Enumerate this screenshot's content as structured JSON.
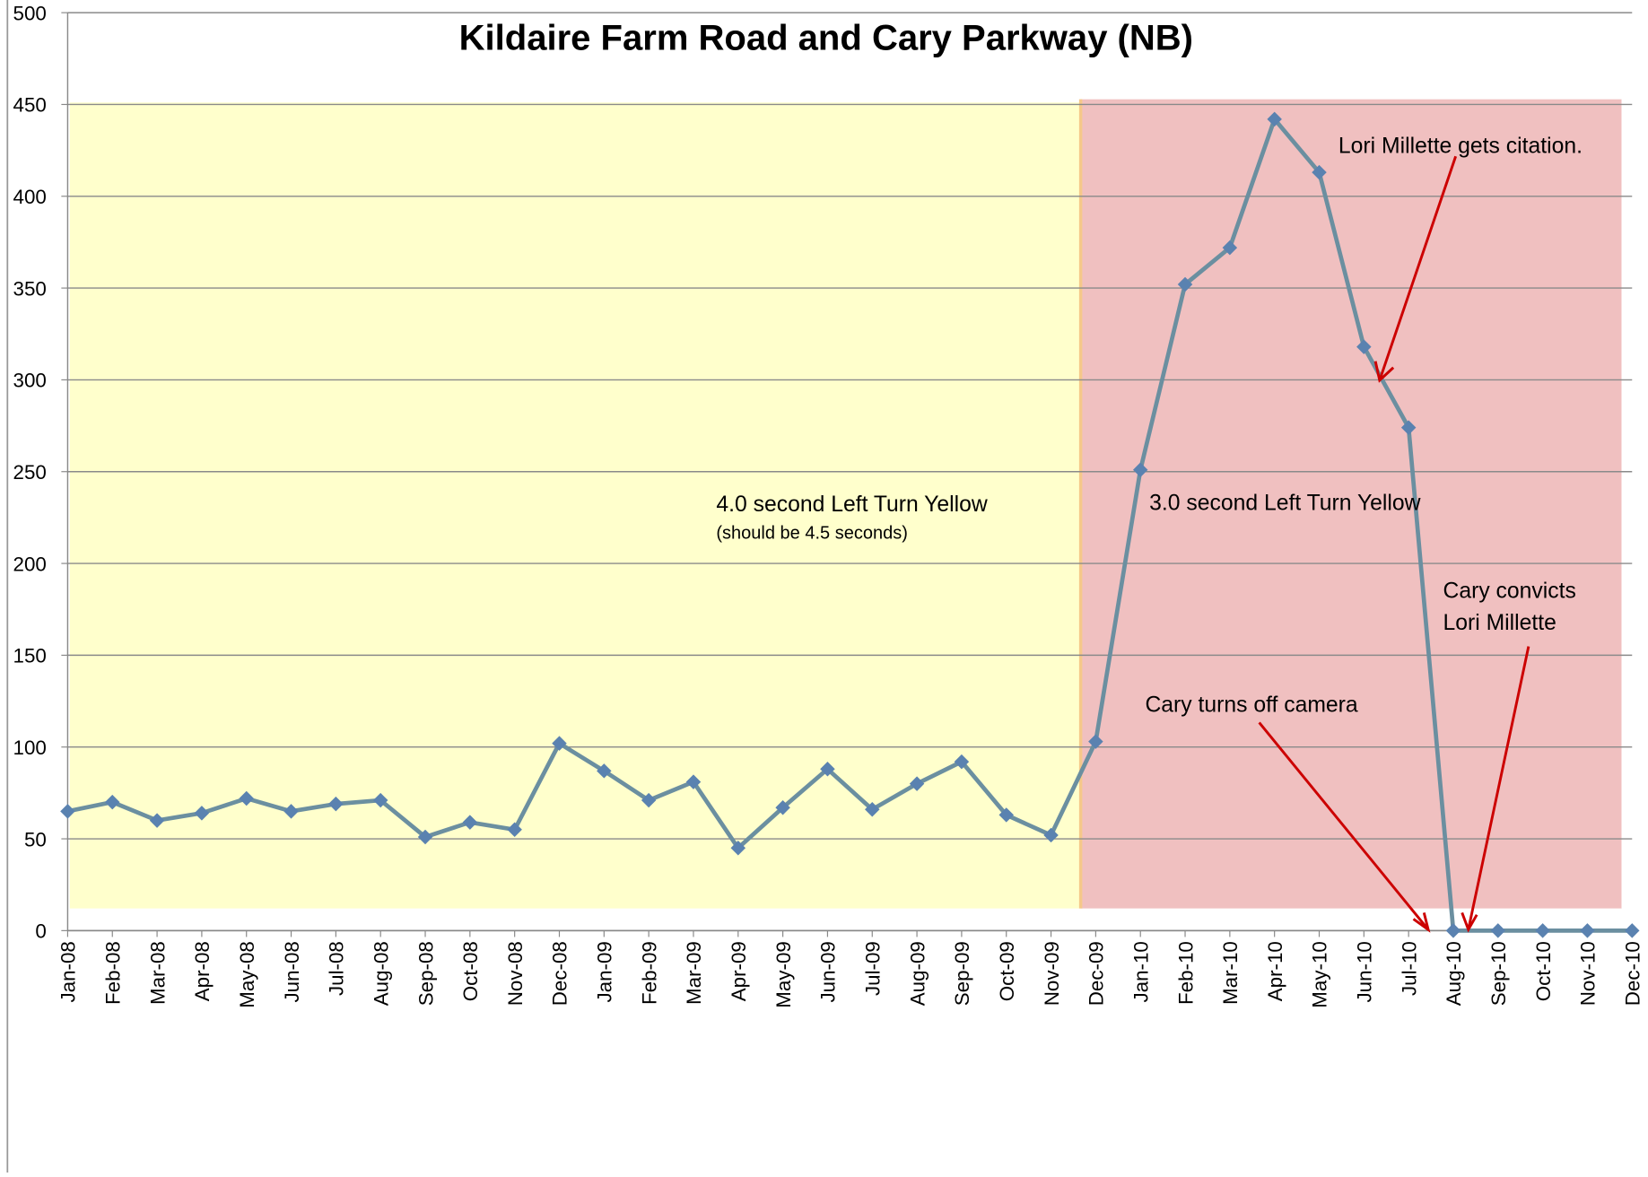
{
  "chart_data": {
    "type": "line",
    "title": "Kildaire Farm Road and Cary Parkway (NB)",
    "categories": [
      "Jan-08",
      "Feb-08",
      "Mar-08",
      "Apr-08",
      "May-08",
      "Jun-08",
      "Jul-08",
      "Aug-08",
      "Sep-08",
      "Oct-08",
      "Nov-08",
      "Dec-08",
      "Jan-09",
      "Feb-09",
      "Mar-09",
      "Apr-09",
      "May-09",
      "Jun-09",
      "Jul-09",
      "Aug-09",
      "Sep-09",
      "Oct-09",
      "Nov-09",
      "Dec-09",
      "Jan-10",
      "Feb-10",
      "Mar-10",
      "Apr-10",
      "May-10",
      "Jun-10",
      "Jul-10",
      "Aug-10",
      "Sep-10",
      "Oct-10",
      "Nov-10",
      "Dec-10"
    ],
    "series": [
      {
        "color": "#6b8fa0",
        "marker_color": "#5a82b0",
        "values": [
          65,
          70,
          60,
          64,
          72,
          65,
          69,
          71,
          51,
          59,
          55,
          102,
          87,
          71,
          81,
          45,
          67,
          88,
          66,
          80,
          92,
          63,
          52,
          103,
          251,
          352,
          372,
          442,
          413,
          318,
          274,
          0,
          0,
          0,
          0,
          0
        ]
      }
    ],
    "ylim": [
      0,
      500
    ],
    "yticks": [
      0,
      50,
      100,
      150,
      200,
      250,
      300,
      350,
      400,
      450,
      500
    ],
    "grid": true,
    "annotations": [
      "4.0 second Left Turn Yellow",
      "(should be 4.5 seconds)",
      "3.0 second  Left Turn Yellow",
      "Lori Millette gets citation.",
      "Cary convicts",
      "Lori Millette",
      "Cary turns off camera"
    ]
  }
}
